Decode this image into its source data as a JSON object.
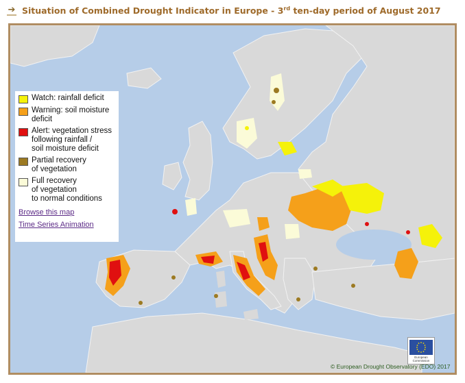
{
  "header": {
    "title_prefix": "Situation of Combined Drought Indicator in Europe - 3",
    "title_sup": "rd",
    "title_suffix": " ten-day period of August 2017",
    "icon": "arrow-right-icon"
  },
  "legend": {
    "items": [
      {
        "label": "Watch: rainfall deficit",
        "color": "#f5f20a"
      },
      {
        "label": "Warning: soil moisture\ndeficit",
        "color": "#f5a01a"
      },
      {
        "label": "Alert: vegetation stress\nfollowing rainfall /\nsoil moisture deficit",
        "color": "#e01010"
      },
      {
        "label": "Partial recovery\nof vegetation",
        "color": "#9c7a22"
      },
      {
        "label": "Full recovery\nof vegetation\nto normal conditions",
        "color": "#fbfbd8"
      }
    ],
    "links": {
      "browse": "Browse this map",
      "animation": "Time Series Animation"
    }
  },
  "logo": {
    "line1": "European",
    "line2": "Commission"
  },
  "copyright": "© European Drought Observatory (EDO) 2017",
  "colors": {
    "sea": "#b6cde8",
    "land": "#d9d9d9",
    "frame": "#b08d62",
    "watch": "#f5f20a",
    "warning": "#f5a01a",
    "alert": "#e01010",
    "partial": "#9c7a22",
    "full": "#fbfbd8"
  }
}
